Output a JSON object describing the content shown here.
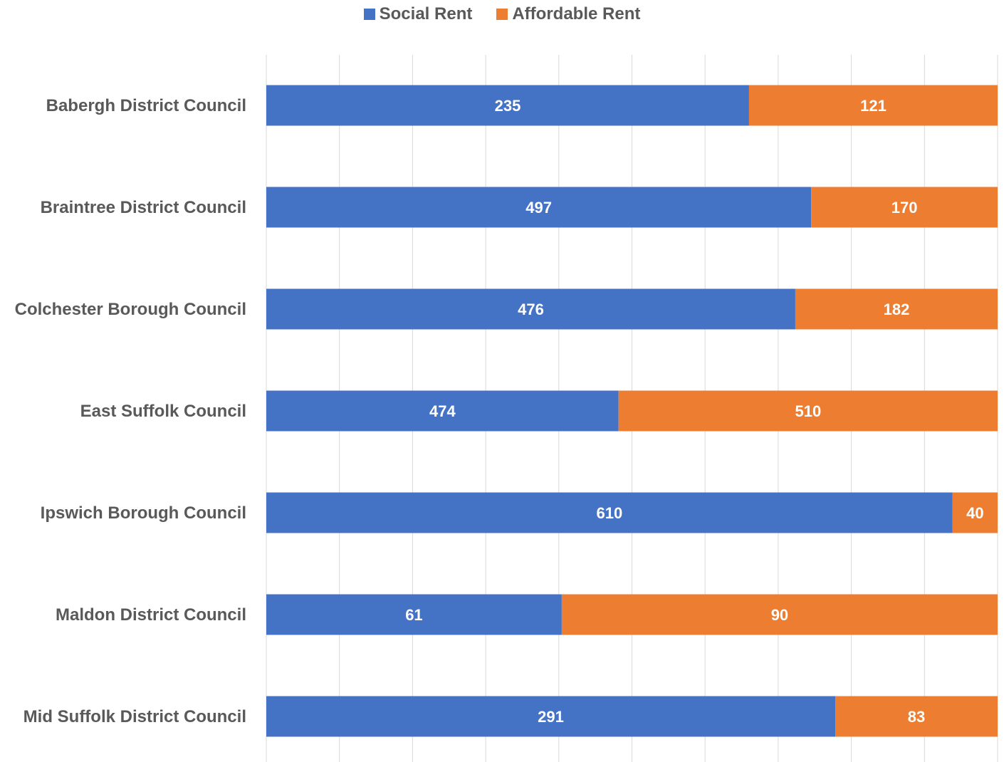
{
  "legend": {
    "social_label": "Social Rent",
    "affordable_label": "Affordable Rent"
  },
  "chart_data": {
    "type": "bar",
    "orientation": "horizontal",
    "stacking": "percent",
    "title": "",
    "xlabel": "",
    "ylabel": "",
    "legend_position": "top",
    "grid": true,
    "xlim": [
      0,
      100
    ],
    "categories": [
      "Babergh District Council",
      "Braintree District Council",
      "Colchester Borough Council",
      "East Suffolk Council",
      "Ipswich Borough Council",
      "Maldon District Council",
      "Mid Suffolk District Council"
    ],
    "series": [
      {
        "name": "Social Rent",
        "color": "#4472C4",
        "values": [
          235,
          497,
          476,
          474,
          610,
          61,
          291
        ]
      },
      {
        "name": "Affordable Rent",
        "color": "#ED7D31",
        "values": [
          121,
          170,
          182,
          510,
          40,
          90,
          83
        ]
      }
    ]
  }
}
